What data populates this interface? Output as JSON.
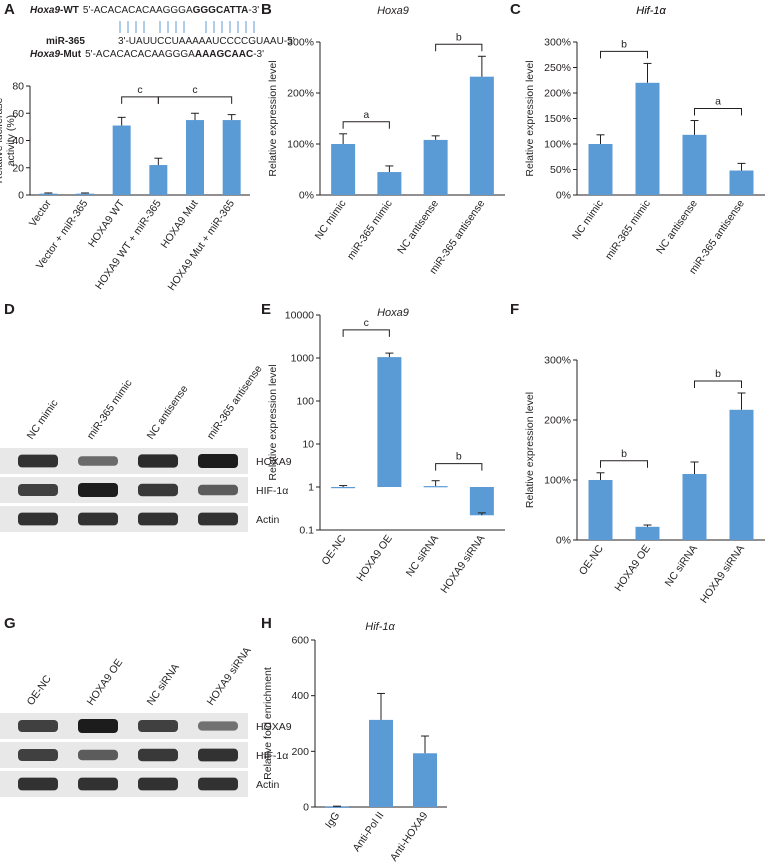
{
  "colors": {
    "bar": "#5b9bd5",
    "axis": "#231f20",
    "blot_bg": "#e8e8e8",
    "blot_band": "#1c1c1c"
  },
  "panels": {
    "A": {
      "label": "A"
    },
    "B": {
      "label": "B"
    },
    "C": {
      "label": "C"
    },
    "D": {
      "label": "D"
    },
    "E": {
      "label": "E"
    },
    "F": {
      "label": "F"
    },
    "G": {
      "label": "G"
    },
    "H": {
      "label": "H"
    }
  },
  "sequence": {
    "wt_name": "Hoxa9",
    "wt_suffix": "-WT",
    "wt_seq_plain": "5'-ACACACACAAGGGA",
    "wt_seq_bold": "GGGCATTA",
    "wt_seq_end": "-3'",
    "mir_name": "miR-365",
    "mir_seq": "3'-UAUUCCUAAAAAUCCCCGUAAU-5'",
    "mut_name": "Hoxa9",
    "mut_suffix": "-Mut",
    "mut_seq_plain": "5'-ACACACACAAGGGA",
    "mut_seq_bold": "AAAGCAAC",
    "mut_seq_end": "-3'"
  },
  "blots": {
    "D": {
      "lanes": [
        "NC mimic",
        "miR-365 mimic",
        "NC antisense",
        "miR-365 antisense"
      ],
      "rows": [
        "HOXA9",
        "HIF-1α",
        "Actin"
      ],
      "intensity": [
        [
          0.85,
          0.45,
          0.9,
          1.0
        ],
        [
          0.75,
          1.0,
          0.8,
          0.55
        ],
        [
          0.85,
          0.85,
          0.85,
          0.85
        ]
      ]
    },
    "G": {
      "lanes": [
        "OE-NC",
        "HOXA9 OE",
        "NC siRNA",
        "HOXA9 siRNA"
      ],
      "rows": [
        "HOXA9",
        "HIF-1α",
        "Actin"
      ],
      "intensity": [
        [
          0.75,
          1.0,
          0.75,
          0.4
        ],
        [
          0.75,
          0.55,
          0.8,
          0.85
        ],
        [
          0.85,
          0.85,
          0.85,
          0.85
        ]
      ]
    }
  },
  "chart_data": [
    {
      "panel": "A",
      "type": "bar",
      "title": "",
      "categories": [
        "Vector",
        "Vector + miR-365",
        "HOXA9 WT",
        "HOXA9 WT + miR-365",
        "HOXA9 Mut",
        "HOXA9 Mut + miR-365"
      ],
      "values": [
        1,
        1,
        51,
        22,
        55,
        55
      ],
      "errors": [
        0.5,
        0.5,
        6,
        5,
        5,
        4
      ],
      "ylabel": "Relative luciferase\nactivity (%)",
      "ylim": [
        0,
        80
      ],
      "yticks": [
        0,
        20,
        40,
        60,
        80
      ],
      "sig": [
        {
          "from": 2,
          "to": 3,
          "label": "c"
        },
        {
          "from": 3,
          "to": 5,
          "label": "c"
        }
      ]
    },
    {
      "panel": "B",
      "type": "bar",
      "title": "Hoxa9",
      "categories": [
        "NC mimic",
        "miR-365 mimic",
        "NC antisense",
        "miR-365 antisense"
      ],
      "values": [
        100,
        45,
        108,
        232
      ],
      "errors": [
        20,
        12,
        8,
        40
      ],
      "ylabel": "Relative expression level",
      "ylim": [
        0,
        300
      ],
      "yticks": [
        0,
        100,
        200,
        300
      ],
      "ytick_labels": [
        "0%",
        "100%",
        "200%",
        "300%"
      ],
      "sig": [
        {
          "from": 0,
          "to": 1,
          "label": "a"
        },
        {
          "from": 2,
          "to": 3,
          "label": "b"
        }
      ]
    },
    {
      "panel": "C",
      "type": "bar",
      "title": "Hif-1α",
      "categories": [
        "NC mimic",
        "miR-365 mimic",
        "NC antisense",
        "miR-365 antisense"
      ],
      "values": [
        100,
        220,
        118,
        48
      ],
      "errors": [
        18,
        38,
        28,
        14
      ],
      "ylabel": "Relative expression level",
      "ylim": [
        0,
        300
      ],
      "yticks": [
        0,
        50,
        100,
        150,
        200,
        250,
        300
      ],
      "ytick_labels": [
        "0%",
        "50%",
        "100%",
        "150%",
        "200%",
        "250%",
        "300%"
      ],
      "sig": [
        {
          "from": 0,
          "to": 1,
          "label": "b"
        },
        {
          "from": 2,
          "to": 3,
          "label": "a"
        }
      ]
    },
    {
      "panel": "E",
      "type": "bar",
      "title": "Hoxa9",
      "scale": "log",
      "categories": [
        "OE-NC",
        "HOXA9 OE",
        "NC siRNA",
        "HOXA9 siRNA"
      ],
      "values": [
        1,
        1050,
        1.05,
        0.22
      ],
      "errors_upper": [
        1.08,
        1300,
        1.4,
        0.25
      ],
      "ylabel": "Relative expression level",
      "ylim": [
        0.1,
        10000
      ],
      "baseline": 1,
      "yticks": [
        0.1,
        1,
        10,
        100,
        1000,
        10000
      ],
      "ytick_labels": [
        "0.1",
        "1",
        "10",
        "100",
        "1000",
        "10000"
      ],
      "sig": [
        {
          "from": 0,
          "to": 1,
          "label": "c"
        },
        {
          "from": 2,
          "to": 3,
          "label": "b"
        }
      ]
    },
    {
      "panel": "F",
      "type": "bar",
      "title": "Hif-1α",
      "categories": [
        "OE-NC",
        "HOXA9 OE",
        "NC siRNA",
        "HOXA9 siRNA"
      ],
      "values": [
        100,
        22,
        110,
        217
      ],
      "errors": [
        12,
        3,
        20,
        28
      ],
      "ylabel": "Relative expression level",
      "ylim": [
        0,
        300
      ],
      "yticks": [
        0,
        100,
        200,
        300
      ],
      "ytick_labels": [
        "0%",
        "100%",
        "200%",
        "300%"
      ],
      "sig": [
        {
          "from": 0,
          "to": 1,
          "label": "b"
        },
        {
          "from": 2,
          "to": 3,
          "label": "b"
        }
      ]
    },
    {
      "panel": "H",
      "type": "bar",
      "title": "Hif-1α",
      "categories": [
        "IgG",
        "Anti-Pol II",
        "Anti-HOXA9"
      ],
      "values": [
        1,
        313,
        193
      ],
      "errors": [
        2,
        95,
        62
      ],
      "ylabel": "Relative fold enrichment",
      "ylim": [
        0,
        600
      ],
      "yticks": [
        0,
        200,
        400,
        600
      ],
      "sig": []
    }
  ]
}
